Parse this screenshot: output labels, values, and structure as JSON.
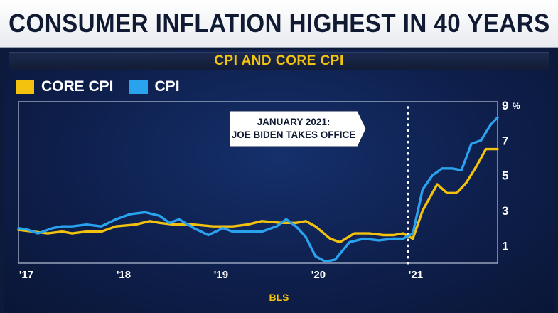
{
  "headline": "CONSUMER INFLATION HIGHEST IN 40 YEARS",
  "source": "BLS",
  "colors": {
    "core_cpi": "#f2c20f",
    "cpi": "#29a3ee",
    "annotation": "#ffffff",
    "headline_text": "#101a33"
  },
  "chart_data": {
    "type": "line",
    "title": "CPI AND CORE CPI",
    "xlabel": "",
    "ylabel": "",
    "ylim": [
      0,
      9.2
    ],
    "xlim": [
      2017.0,
      2021.92
    ],
    "x_tick_labels": [
      "'17",
      "'18",
      "'19",
      "'20",
      "'21"
    ],
    "x_tick_values": [
      2017.08,
      2018.08,
      2019.08,
      2020.08,
      2021.08
    ],
    "y_tick_labels": [
      "1",
      "3",
      "5",
      "7",
      "9"
    ],
    "y_tick_values": [
      1,
      3,
      5,
      7,
      9
    ],
    "y_unit": "%",
    "grid": false,
    "legend_position": "top-left",
    "annotation": {
      "text_lines": [
        "JANUARY 2021:",
        "JOE BIDEN TAKES OFFICE"
      ],
      "x": 2021.0
    },
    "series": [
      {
        "name": "CORE CPI",
        "color": "#f2c20f",
        "x": [
          2017.0,
          2017.15,
          2017.3,
          2017.45,
          2017.55,
          2017.7,
          2017.85,
          2018.0,
          2018.2,
          2018.35,
          2018.45,
          2018.6,
          2018.8,
          2019.0,
          2019.2,
          2019.35,
          2019.5,
          2019.7,
          2019.85,
          2019.95,
          2020.05,
          2020.2,
          2020.3,
          2020.45,
          2020.6,
          2020.75,
          2020.85,
          2020.95,
          2021.05,
          2021.15,
          2021.3,
          2021.4,
          2021.5,
          2021.6,
          2021.7,
          2021.8,
          2021.92
        ],
        "y": [
          1.9,
          1.8,
          1.7,
          1.8,
          1.7,
          1.8,
          1.8,
          2.1,
          2.2,
          2.4,
          2.3,
          2.2,
          2.2,
          2.1,
          2.1,
          2.2,
          2.4,
          2.3,
          2.3,
          2.4,
          2.1,
          1.4,
          1.2,
          1.7,
          1.7,
          1.6,
          1.6,
          1.7,
          1.4,
          3.0,
          4.5,
          4.0,
          4.0,
          4.6,
          5.5,
          6.5,
          6.5
        ]
      },
      {
        "name": "CPI",
        "color": "#29a3ee",
        "x": [
          2017.0,
          2017.1,
          2017.2,
          2017.35,
          2017.45,
          2017.55,
          2017.7,
          2017.85,
          2018.0,
          2018.15,
          2018.3,
          2018.45,
          2018.55,
          2018.65,
          2018.8,
          2018.95,
          2019.1,
          2019.2,
          2019.35,
          2019.5,
          2019.65,
          2019.75,
          2019.85,
          2019.95,
          2020.05,
          2020.15,
          2020.25,
          2020.4,
          2020.55,
          2020.7,
          2020.85,
          2020.95,
          2021.05,
          2021.15,
          2021.25,
          2021.35,
          2021.45,
          2021.55,
          2021.65,
          2021.75,
          2021.85,
          2021.92
        ],
        "y": [
          2.0,
          1.9,
          1.7,
          2.0,
          2.1,
          2.1,
          2.2,
          2.1,
          2.5,
          2.8,
          2.9,
          2.7,
          2.3,
          2.5,
          2.0,
          1.6,
          2.0,
          1.8,
          1.8,
          1.8,
          2.1,
          2.5,
          2.1,
          1.5,
          0.4,
          0.1,
          0.2,
          1.2,
          1.4,
          1.3,
          1.4,
          1.4,
          1.7,
          4.2,
          5.0,
          5.4,
          5.4,
          5.3,
          6.8,
          7.0,
          7.9,
          8.3
        ]
      }
    ]
  }
}
